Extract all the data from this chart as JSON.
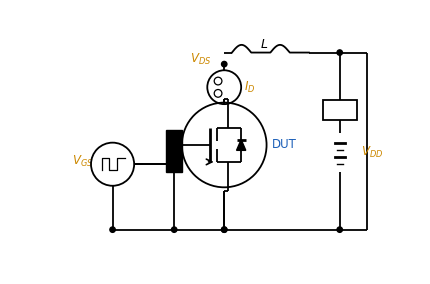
{
  "bg_color": "#ffffff",
  "line_color": "#000000",
  "label_color_orange": "#cc8800",
  "label_color_blue": "#1a5eb8",
  "label_color_black": "#000000",
  "fig_width": 4.3,
  "fig_height": 2.84,
  "dpi": 100
}
